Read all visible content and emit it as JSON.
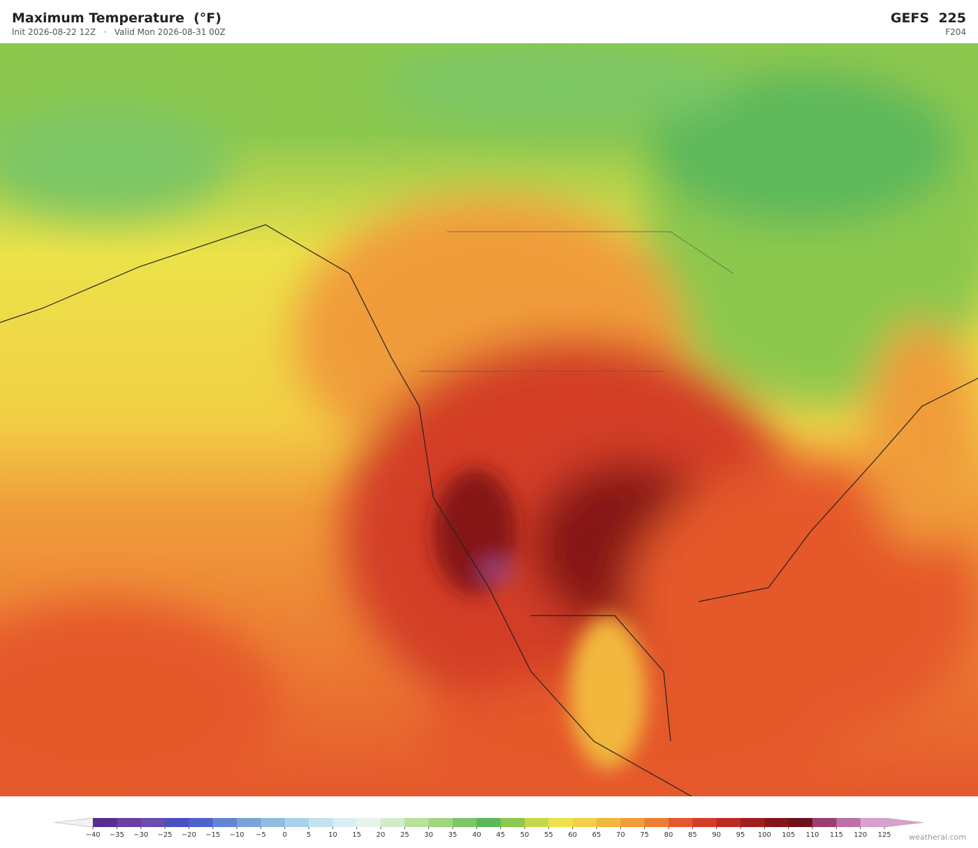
{
  "header": {
    "title": "Maximum Temperature  (°F)",
    "init": "Init 2026-08-22 12Z",
    "separator": "·",
    "valid": "Valid Mon 2026-08-31 00Z",
    "model": "GEFS  225",
    "forecast_hour": "F204"
  },
  "colorbar": {
    "ticks": [
      {
        "value": -40,
        "label": "−40"
      },
      {
        "value": -35,
        "label": "−35"
      },
      {
        "value": -30,
        "label": "−30"
      },
      {
        "value": -25,
        "label": "−25"
      },
      {
        "value": -20,
        "label": "−20"
      },
      {
        "value": -15,
        "label": "−15"
      },
      {
        "value": -10,
        "label": "−10"
      },
      {
        "value": -5,
        "label": "−5"
      },
      0,
      5,
      10,
      15,
      20,
      25,
      30,
      35,
      40,
      45,
      50,
      55,
      60,
      65,
      70,
      75,
      80,
      85,
      90,
      95,
      100,
      105,
      110,
      115,
      120,
      125
    ],
    "colors": [
      "#5a2d91",
      "#6b3fa0",
      "#6a4bb0",
      "#4a4fc0",
      "#4f63cc",
      "#6485d0",
      "#7aa3d8",
      "#8fbce0",
      "#a8d2ea",
      "#c2e2f0",
      "#d8eef2",
      "#e6f4ea",
      "#d3ecc8",
      "#b9e09c",
      "#a0d67e",
      "#7cc665",
      "#5cb85a",
      "#8cc84e",
      "#c6d848",
      "#ece24a",
      "#f2cf45",
      "#f2b83e",
      "#f09c3a",
      "#ec7e34",
      "#e5582c",
      "#d33d26",
      "#be2a22",
      "#a11d1e",
      "#861519",
      "#70121c",
      "#9a4070",
      "#c070a8",
      "#d8a0cc"
    ]
  },
  "watermark": "weatherai.com"
}
